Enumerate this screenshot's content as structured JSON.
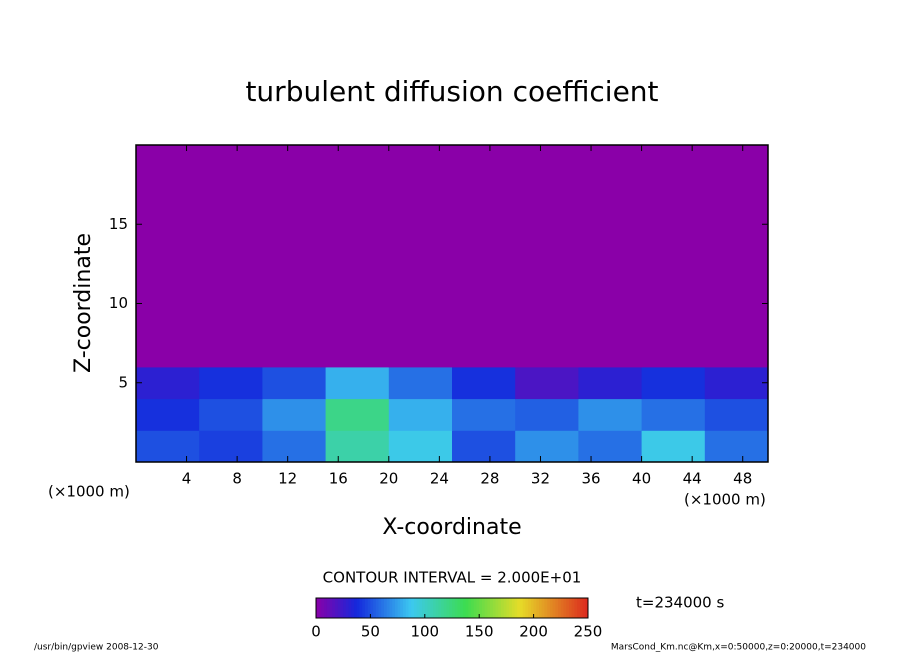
{
  "chart_data": {
    "type": "heatmap",
    "title": "turbulent diffusion coefficient",
    "xlabel": "X-coordinate",
    "ylabel": "Z-coordinate",
    "x_unit_label": "(×1000 m)",
    "y_unit_label": "(×1000 m)",
    "xlim": [
      0,
      50
    ],
    "ylim": [
      0,
      20
    ],
    "xticks": [
      4,
      8,
      12,
      16,
      20,
      24,
      28,
      32,
      36,
      40,
      44,
      48
    ],
    "yticks": [
      5,
      10,
      15
    ],
    "x_edges": [
      0,
      5,
      10,
      15,
      20,
      25,
      30,
      35,
      40,
      45,
      50
    ],
    "y_edges": [
      0,
      2,
      4,
      6,
      20
    ],
    "values": [
      [
        50,
        45,
        60,
        110,
        90,
        50,
        70,
        60,
        90,
        60
      ],
      [
        40,
        50,
        70,
        120,
        80,
        60,
        55,
        70,
        60,
        50
      ],
      [
        30,
        40,
        50,
        80,
        60,
        40,
        20,
        30,
        40,
        30
      ],
      [
        0,
        0,
        0,
        0,
        0,
        0,
        0,
        0,
        0,
        0
      ]
    ],
    "colorbar_lim": [
      0,
      250
    ],
    "colorbar_ticks": [
      0,
      50,
      100,
      150,
      200,
      250
    ],
    "contour_interval_label": "CONTOUR INTERVAL = 2.000E+01",
    "time_label": "t=234000 s",
    "footer_left": "/usr/bin/gpview   2008-12-30",
    "footer_right": "MarsCond_Km.nc@Km,x=0:50000,z=0:20000,t=234000"
  }
}
